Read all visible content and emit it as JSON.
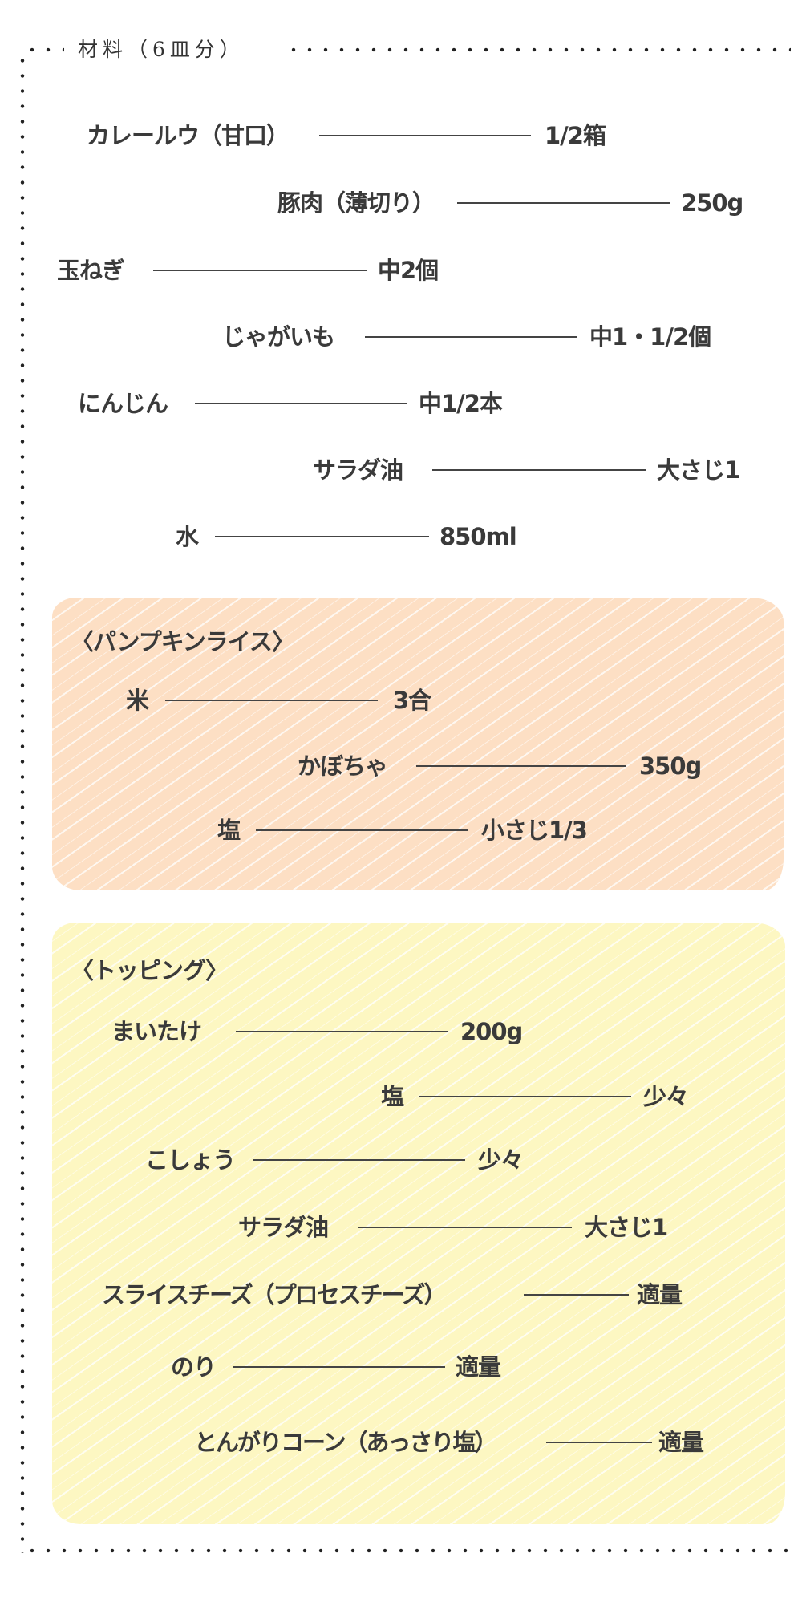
{
  "title": "材料（6皿分）",
  "colors": {
    "orange_box": "#fddfc4",
    "yellow_box": "#fdf7c2",
    "text": "#3a3a3a"
  },
  "main": [
    {
      "name": "カレールウ（甘口）",
      "amount": "1/2箱"
    },
    {
      "name": "豚肉（薄切り）",
      "amount": "250g"
    },
    {
      "name": "玉ねぎ",
      "amount": "中2個"
    },
    {
      "name": "じゃがいも",
      "amount": "中1・1/2個"
    },
    {
      "name": "にんじん",
      "amount": "中1/2本"
    },
    {
      "name": "サラダ油",
      "amount": "大さじ1"
    },
    {
      "name": "水",
      "amount": "850ml"
    }
  ],
  "pumpkin_rice": {
    "heading": "〈パンプキンライス〉",
    "items": [
      {
        "name": "米",
        "amount": "3合"
      },
      {
        "name": "かぼちゃ",
        "amount": "350g"
      },
      {
        "name": "塩",
        "amount": "小さじ1/3"
      }
    ]
  },
  "topping": {
    "heading": "〈トッピング〉",
    "items": [
      {
        "name": "まいたけ",
        "amount": "200g"
      },
      {
        "name": "塩",
        "amount": "少々"
      },
      {
        "name": "こしょう",
        "amount": "少々"
      },
      {
        "name": "サラダ油",
        "amount": "大さじ1"
      },
      {
        "name": "スライスチーズ（プロセスチーズ）",
        "amount": "適量"
      },
      {
        "name": "のり",
        "amount": "適量"
      },
      {
        "name": "とんがりコーン（あっさり塩）",
        "amount": "適量"
      }
    ]
  }
}
